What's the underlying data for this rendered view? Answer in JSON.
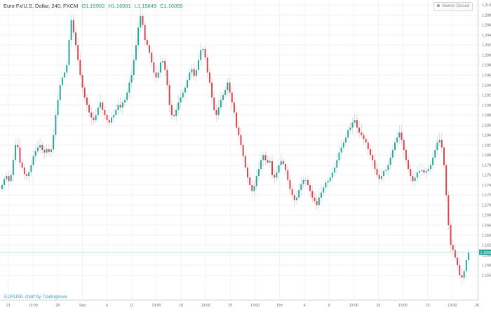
{
  "header": {
    "symbol": "Euro Fx/U.S. Dollar, 240, FXCM",
    "open": "O1.15902",
    "high": "H1.16091",
    "low": "L1.15849",
    "close": "C1.16055"
  },
  "market_status": "Market Closed",
  "watermark": "EURUSD chart by TradingView",
  "colors": {
    "up": "#26a69a",
    "down": "#d9434b",
    "price_line": "#9ed5d0",
    "label_bg": "#26a69a"
  },
  "chart_data": {
    "type": "candlestick",
    "title": "Euro Fx/U.S. Dollar, 240, FXCM",
    "ylim": [
      1.151,
      1.211
    ],
    "y_ticks": [
      "1.21000",
      "1.20800",
      "1.20600",
      "1.20400",
      "1.20200",
      "1.20000",
      "1.19800",
      "1.19600",
      "1.19400",
      "1.19200",
      "1.19000",
      "1.18800",
      "1.18600",
      "1.18400",
      "1.18200",
      "1.18000",
      "1.17800",
      "1.17600",
      "1.17400",
      "1.17200",
      "1.17000",
      "1.16800",
      "1.16600",
      "1.16400",
      "1.16200",
      "1.16000",
      "1.15800",
      "1.15600"
    ],
    "x_ticks": [
      "21",
      "13:00",
      "28",
      "Sep",
      "6",
      "11",
      "13:00",
      "18",
      "13:00",
      "25",
      "13:00",
      "Oct",
      "4",
      "9",
      "13:00",
      "16",
      "13:00",
      "23",
      "13:00",
      "26"
    ],
    "last_price": "1.16055",
    "grid": true,
    "closes": [
      1.174,
      1.1752,
      1.1758,
      1.1748,
      1.176,
      1.179,
      1.182,
      1.1815,
      1.1785,
      1.1775,
      1.1762,
      1.1758,
      1.1766,
      1.178,
      1.1798,
      1.1808,
      1.1815,
      1.182,
      1.181,
      1.1805,
      1.1812,
      1.1806,
      1.1811,
      1.184,
      1.188,
      1.191,
      1.194,
      1.1955,
      1.1965,
      1.198,
      1.203,
      1.207,
      1.2045,
      1.202,
      1.199,
      1.196,
      1.1935,
      1.1915,
      1.19,
      1.1885,
      1.1875,
      1.187,
      1.188,
      1.1895,
      1.1905,
      1.189,
      1.188,
      1.187,
      1.1865,
      1.1875,
      1.188,
      1.189,
      1.19,
      1.1895,
      1.1905,
      1.191,
      1.1925,
      1.1945,
      1.196,
      1.199,
      1.202,
      1.2055,
      1.2078,
      1.206,
      1.203,
      1.202,
      1.2005,
      1.1985,
      1.1965,
      1.1955,
      1.1965,
      1.1985,
      1.1988,
      1.197,
      1.194,
      1.19,
      1.188,
      1.1878,
      1.189,
      1.1905,
      1.1915,
      1.1925,
      1.1935,
      1.195,
      1.1965,
      1.1972,
      1.1958,
      1.197,
      1.199,
      1.201,
      1.2012,
      1.1995,
      1.1965,
      1.1945,
      1.1915,
      1.189,
      1.188,
      1.1895,
      1.191,
      1.192,
      1.193,
      1.1945,
      1.1925,
      1.1905,
      1.1885,
      1.1855,
      1.184,
      1.182,
      1.1798,
      1.1775,
      1.1755,
      1.174,
      1.1728,
      1.1738,
      1.1758,
      1.1772,
      1.179,
      1.18,
      1.179,
      1.1785,
      1.1788,
      1.176,
      1.1755,
      1.1765,
      1.178,
      1.1788,
      1.1782,
      1.177,
      1.175,
      1.1732,
      1.172,
      1.171,
      1.1715,
      1.173,
      1.1742,
      1.175,
      1.175,
      1.174,
      1.1728,
      1.1715,
      1.1708,
      1.17,
      1.1715,
      1.1725,
      1.1735,
      1.1745,
      1.1748,
      1.1755,
      1.1765,
      1.1775,
      1.179,
      1.1805,
      1.1815,
      1.1825,
      1.1835,
      1.185,
      1.1855,
      1.1865,
      1.187,
      1.1855,
      1.1845,
      1.184,
      1.1832,
      1.1825,
      1.1812,
      1.18,
      1.179,
      1.1772,
      1.176,
      1.1752,
      1.1758,
      1.1768,
      1.177,
      1.178,
      1.1795,
      1.181,
      1.1825,
      1.1835,
      1.1845,
      1.183,
      1.181,
      1.179,
      1.1772,
      1.1758,
      1.1748,
      1.1755,
      1.1765,
      1.1768,
      1.177,
      1.1765,
      1.1768,
      1.1772,
      1.178,
      1.1795,
      1.181,
      1.1825,
      1.183,
      1.1815,
      1.178,
      1.172,
      1.166,
      1.162,
      1.161,
      1.1595,
      1.158,
      1.156,
      1.1555,
      1.1568,
      1.159,
      1.1605
    ]
  }
}
